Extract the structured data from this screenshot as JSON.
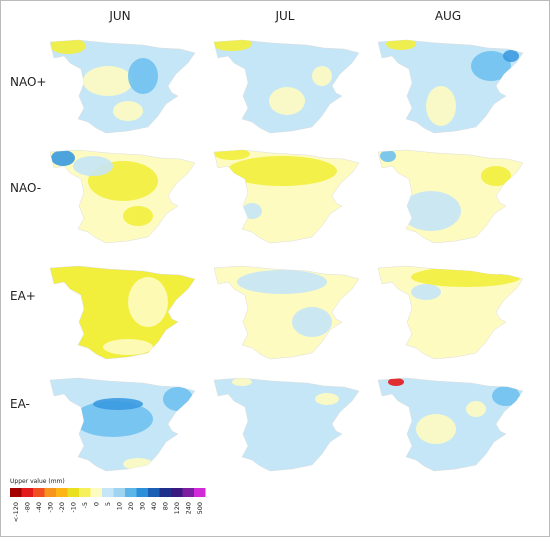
{
  "columns": [
    "JUN",
    "JUL",
    "AUG"
  ],
  "rows": [
    "NAO+",
    "NAO-",
    "EA+",
    "EA-"
  ],
  "legend": {
    "title": "Upper value (mm)",
    "labels": [
      "<-120",
      "-80",
      "-40",
      "-30",
      "-20",
      "-10",
      "-5",
      "0",
      "5",
      "10",
      "20",
      "30",
      "40",
      "80",
      "120",
      "240",
      "500"
    ],
    "colors": [
      "#a50000",
      "#e31a1c",
      "#f04e23",
      "#f7941d",
      "#fdb515",
      "#e8e020",
      "#f6f05a",
      "#fdfbc0",
      "#c5e6f7",
      "#9fd4f1",
      "#5bb5e8",
      "#2d8fd8",
      "#1a5fb4",
      "#1e2f8c",
      "#3a1a80",
      "#7b1ea2",
      "#d12bd9"
    ]
  }
}
